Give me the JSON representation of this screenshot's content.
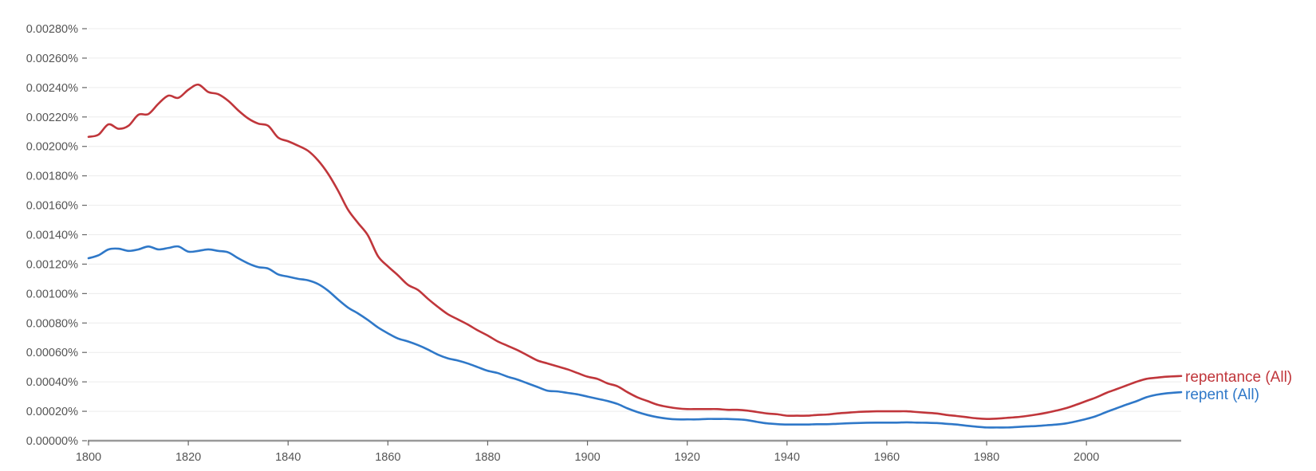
{
  "chart_data": {
    "type": "line",
    "title": "",
    "xlabel": "",
    "ylabel": "",
    "xlim": [
      1800,
      2019
    ],
    "ylim": [
      0,
      0.0028
    ],
    "y_tick_unit": "%",
    "x_ticks": [
      "1800",
      "1820",
      "1840",
      "1860",
      "1880",
      "1900",
      "1920",
      "1940",
      "1960",
      "1980",
      "2000"
    ],
    "y_ticks": [
      "0.00000%",
      "0.00020%",
      "0.00040%",
      "0.00060%",
      "0.00080%",
      "0.00100%",
      "0.00120%",
      "0.00140%",
      "0.00160%",
      "0.00180%",
      "0.00200%",
      "0.00220%",
      "0.00240%",
      "0.00260%",
      "0.00280%"
    ],
    "grid": true,
    "legend_placement": "inline-right-end",
    "x": [
      1800,
      1802,
      1804,
      1806,
      1808,
      1810,
      1812,
      1814,
      1816,
      1818,
      1820,
      1822,
      1824,
      1826,
      1828,
      1830,
      1832,
      1834,
      1836,
      1838,
      1840,
      1842,
      1844,
      1846,
      1848,
      1850,
      1852,
      1854,
      1856,
      1858,
      1860,
      1862,
      1864,
      1866,
      1868,
      1870,
      1872,
      1874,
      1876,
      1878,
      1880,
      1882,
      1884,
      1886,
      1888,
      1890,
      1892,
      1894,
      1896,
      1898,
      1900,
      1902,
      1904,
      1906,
      1908,
      1910,
      1912,
      1914,
      1916,
      1918,
      1920,
      1922,
      1924,
      1926,
      1928,
      1930,
      1932,
      1934,
      1936,
      1938,
      1940,
      1942,
      1944,
      1946,
      1948,
      1950,
      1952,
      1954,
      1956,
      1958,
      1960,
      1962,
      1964,
      1966,
      1968,
      1970,
      1972,
      1974,
      1976,
      1978,
      1980,
      1982,
      1984,
      1986,
      1988,
      1990,
      1992,
      1994,
      1996,
      1998,
      2000,
      2002,
      2004,
      2006,
      2008,
      2010,
      2012,
      2014,
      2016,
      2019
    ],
    "series": [
      {
        "name": "repentance (All)",
        "color": "#c0363b",
        "values": [
          0.002065,
          0.00208,
          0.00215,
          0.00212,
          0.00214,
          0.002215,
          0.00222,
          0.00229,
          0.002345,
          0.00233,
          0.002385,
          0.00242,
          0.00237,
          0.002355,
          0.00231,
          0.002245,
          0.00219,
          0.002155,
          0.00214,
          0.00206,
          0.002035,
          0.002005,
          0.00197,
          0.001905,
          0.001815,
          0.0017,
          0.00157,
          0.00148,
          0.001395,
          0.001255,
          0.001185,
          0.001125,
          0.00106,
          0.001025,
          0.000965,
          0.00091,
          0.00086,
          0.000825,
          0.00079,
          0.00075,
          0.000715,
          0.000675,
          0.000645,
          0.000615,
          0.00058,
          0.000545,
          0.000525,
          0.000505,
          0.000485,
          0.00046,
          0.000435,
          0.00042,
          0.00039,
          0.00037,
          0.00033,
          0.000295,
          0.00027,
          0.000245,
          0.00023,
          0.00022,
          0.000215,
          0.000215,
          0.000215,
          0.000215,
          0.00021,
          0.00021,
          0.000205,
          0.000195,
          0.000185,
          0.00018,
          0.00017,
          0.00017,
          0.00017,
          0.000175,
          0.000178,
          0.000185,
          0.00019,
          0.000195,
          0.000198,
          0.0002,
          0.0002,
          0.0002,
          0.0002,
          0.000195,
          0.00019,
          0.000185,
          0.000175,
          0.000168,
          0.00016,
          0.000152,
          0.000148,
          0.00015,
          0.000155,
          0.00016,
          0.000168,
          0.000178,
          0.00019,
          0.000205,
          0.000222,
          0.000245,
          0.00027,
          0.000295,
          0.000325,
          0.00035,
          0.000375,
          0.0004,
          0.00042,
          0.000428,
          0.000435,
          0.00044
        ]
      },
      {
        "name": "repent (All)",
        "color": "#2f78c8",
        "values": [
          0.00124,
          0.00126,
          0.0013,
          0.001305,
          0.00129,
          0.0013,
          0.00132,
          0.0013,
          0.00131,
          0.00132,
          0.001285,
          0.00129,
          0.0013,
          0.00129,
          0.00128,
          0.00124,
          0.001205,
          0.00118,
          0.00117,
          0.00113,
          0.001115,
          0.0011,
          0.00109,
          0.001065,
          0.00102,
          0.00096,
          0.000905,
          0.000865,
          0.00082,
          0.00077,
          0.00073,
          0.000695,
          0.000675,
          0.00065,
          0.00062,
          0.000585,
          0.00056,
          0.000545,
          0.000525,
          0.0005,
          0.000475,
          0.00046,
          0.000435,
          0.000415,
          0.00039,
          0.000365,
          0.00034,
          0.000335,
          0.000325,
          0.000315,
          0.0003,
          0.000285,
          0.00027,
          0.00025,
          0.00022,
          0.000195,
          0.000175,
          0.00016,
          0.00015,
          0.000145,
          0.000145,
          0.000145,
          0.000148,
          0.000148,
          0.000148,
          0.000145,
          0.00014,
          0.000128,
          0.000118,
          0.000113,
          0.00011,
          0.00011,
          0.00011,
          0.000112,
          0.000112,
          0.000115,
          0.000118,
          0.00012,
          0.000122,
          0.000123,
          0.000123,
          0.000123,
          0.000125,
          0.000123,
          0.000122,
          0.00012,
          0.000115,
          0.00011,
          0.000102,
          9.5e-05,
          9e-05,
          9e-05,
          9e-05,
          9.3e-05,
          9.7e-05,
          0.0001,
          0.000105,
          0.00011,
          0.000118,
          0.000132,
          0.000148,
          0.000168,
          0.000195,
          0.00022,
          0.000245,
          0.000268,
          0.000295,
          0.000312,
          0.000322,
          0.00033
        ]
      }
    ]
  }
}
